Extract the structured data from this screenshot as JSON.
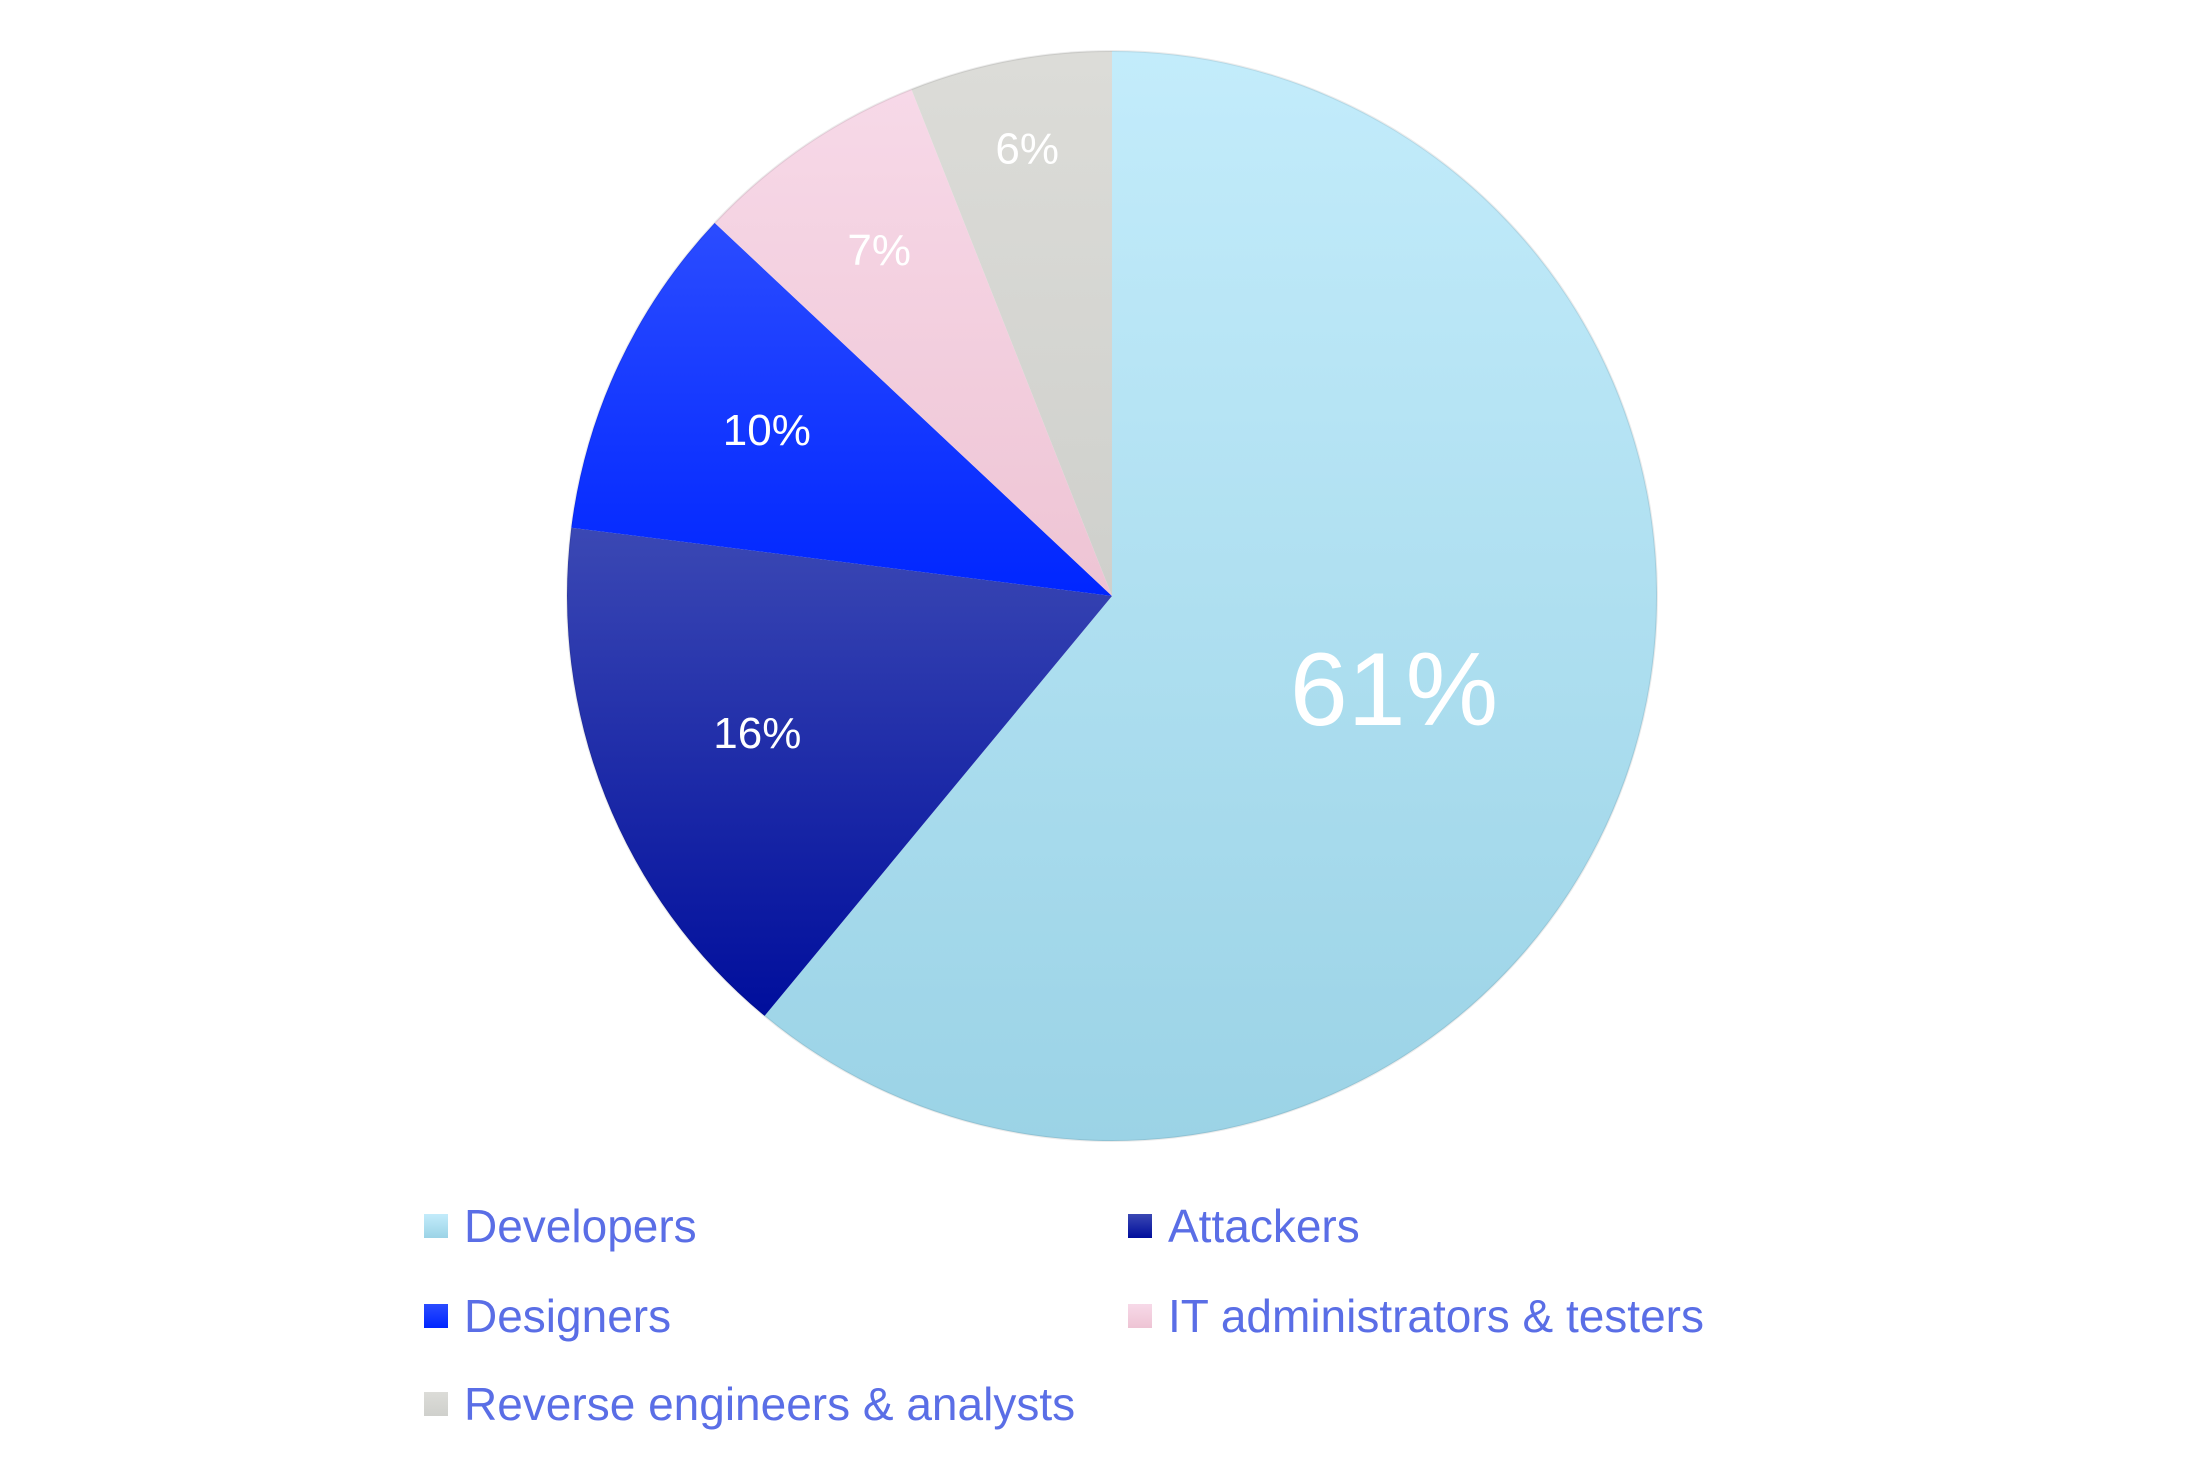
{
  "chart_data": {
    "type": "pie",
    "title": "",
    "categories": [
      "Developers",
      "Attackers",
      "Designers",
      "IT administrators & testers",
      "Reverse engineers & analysts"
    ],
    "values": [
      61,
      16,
      10,
      7,
      6
    ],
    "value_labels": [
      "61%",
      "16%",
      "10%",
      "7%",
      "6%"
    ],
    "start_angle_deg": 0,
    "direction": "clockwise",
    "slice_colors": [
      {
        "top": "#c3ecfb",
        "bottom": "#9bd3e6"
      },
      {
        "top": "#3b48b4",
        "bottom": "#000e9c"
      },
      {
        "top": "#2b4cff",
        "bottom": "#0026ff"
      },
      {
        "top": "#f7d9e8",
        "bottom": "#eec4d4"
      },
      {
        "top": "#dcdcd8",
        "bottom": "#cfd0cc"
      }
    ],
    "legend_placement": "bottom",
    "legend_text_color": "#5a6ee6",
    "label_color": "#ffffff"
  }
}
